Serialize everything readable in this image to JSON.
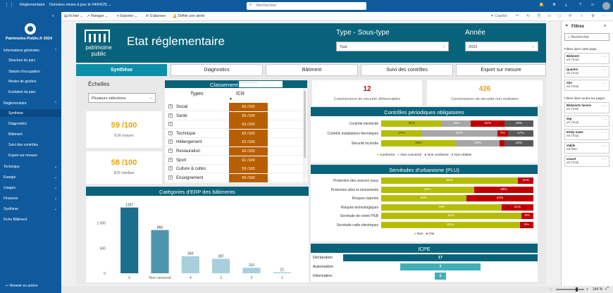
{
  "app": {
    "title": "Réglementaire",
    "updated": "Données mises à jour le 04/04/25",
    "search_placeholder": "Rechercher"
  },
  "sidebar": {
    "brand": "Patrimoine-Public.fr 2024",
    "items": [
      {
        "label": "Informations générales"
      },
      {
        "label": "Structure du parc"
      },
      {
        "label": "Statuts d'occupation"
      },
      {
        "label": "Modes de gestion"
      },
      {
        "label": "Evolution du parc"
      },
      {
        "label": "Réglementaire"
      },
      {
        "label": "Synthèse"
      },
      {
        "label": "Diagnostics"
      },
      {
        "label": "Bâtiment"
      },
      {
        "label": "Suivi des contrôles"
      },
      {
        "label": "Export sur mesure"
      },
      {
        "label": "Technique"
      },
      {
        "label": "Energie"
      },
      {
        "label": "Usages"
      },
      {
        "label": "Finances"
      },
      {
        "label": "Synthèse"
      },
      {
        "label": "Fiche Bâtiment"
      }
    ],
    "back": "Revenir en arrière"
  },
  "toolbar": {
    "file": "Fichier",
    "share": "Partager",
    "export": "Exporter",
    "subscribe": "S'abonner",
    "alert": "Définir une alerte",
    "copilot": "Copilot"
  },
  "report": {
    "logo_text": "patrimoine public",
    "title": "Etat réglementaire",
    "filter_type_label": "Type - Sous-type",
    "filter_type_value": "Tout",
    "filter_year_label": "Année",
    "filter_year_value": "2023",
    "tabs": [
      "Synthèse",
      "Diagnostics",
      "Bâtiment",
      "Suivi des contrôles",
      "Export sur mesure"
    ],
    "echelles_label": "Échelles",
    "echelles_value": "Plusieurs sélections",
    "kpi1_value": "59 /100",
    "kpi1_label": "ICR moyen",
    "kpi2_value": "58 /100",
    "kpi2_label": "ICR médian",
    "class_title": "Classement",
    "class_col_types": "Types",
    "class_col_icr": "ICR",
    "class_rows": [
      {
        "t": "Social",
        "v": "66 /100"
      },
      {
        "t": "Santé",
        "v": "65 /100"
      },
      {
        "t": "",
        "v": "63 /100"
      },
      {
        "t": "Technique",
        "v": "63 /100"
      },
      {
        "t": "Hébergement",
        "v": "62 /100"
      },
      {
        "t": "Restauration",
        "v": "62 /100"
      },
      {
        "t": "Sport",
        "v": "61 /100"
      },
      {
        "t": "Culture & cultes",
        "v": "59 /100"
      },
      {
        "t": "Enseignement",
        "v": "59 /100"
      }
    ],
    "comm_fav_value": "12",
    "comm_fav_label": "Commissions de sécurité défavorables",
    "comm_nr_value": "426",
    "comm_nr_label": "Commissions de sécurité non réalisées",
    "cpo_title": "Contrôles périodiques obligatoires",
    "cpo_rows": [
      {
        "label": "Contrôle électricité",
        "segs": [
          "40%",
          "19%",
          "22%",
          "19%"
        ],
        "w": [
          40,
          19,
          22,
          19
        ]
      },
      {
        "label": "Contrôle installations thermiques",
        "segs": [
          "27%",
          "50%",
          "7%",
          "17%"
        ],
        "w": [
          27,
          50,
          7,
          17
        ]
      },
      {
        "label": "Sécurité incendie",
        "segs": [
          "49%",
          "29%",
          "",
          "19%"
        ],
        "w": [
          49,
          29,
          3,
          19
        ]
      }
    ],
    "cpo_legend": [
      "Conforme",
      "Non concerné",
      "Non conforme",
      "Non réalisé"
    ],
    "plu_title": "Servitudes d'urbanisme (PLU)",
    "plu_rows": [
      {
        "label": "Protection des sources (eau)",
        "a": "90%",
        "b": "10%",
        "wa": 90
      },
      {
        "label": "Protection sites et monuments",
        "a": "61%",
        "b": "39%",
        "wa": 61
      },
      {
        "label": "Risques naturels",
        "a": "56%",
        "b": "44%",
        "wa": 56
      },
      {
        "label": "Risques technologiques",
        "a": "79%",
        "b": "21%",
        "wa": 79
      },
      {
        "label": "Servitude de voirie/ PEB",
        "a": "92%",
        "b": "8%",
        "wa": 92
      },
      {
        "label": "Servitude radio électriques",
        "a": "91%",
        "b": "9%",
        "wa": 91
      }
    ],
    "plu_legend": [
      "Non",
      "Oui"
    ],
    "icpe_title": "ICPE",
    "icpe_rows": [
      {
        "label": "Déclaration",
        "v": "17"
      },
      {
        "label": "Autorisation",
        "v": "7"
      },
      {
        "label": "Information",
        "v": "1"
      }
    ],
    "erp_title": "Catégories d'ERP des bâtiments"
  },
  "filters": {
    "title": "Filtres",
    "search": "Rechercher",
    "page_section": "Filtres dans cette page",
    "all_section": "Filtres dans toutes les pages",
    "page_filters": [
      {
        "n": "Bâtiment",
        "v": "est (Tout)"
      },
      {
        "n": "Quartier",
        "v": "est (Tout)"
      },
      {
        "n": "Site",
        "v": "est (Tout)"
      }
    ],
    "all_filters": [
      {
        "n": "Bâtiments favoris",
        "v": "est (Tout)"
      },
      {
        "n": "dep",
        "v": "est (Tout)"
      },
      {
        "n": "Entity name",
        "v": "est (Tout)"
      },
      {
        "n": "Valide",
        "v": "est false"
      },
      {
        "n": "vacant",
        "v": "est (Tout)"
      }
    ]
  },
  "zoom": "144 %",
  "chart_data": {
    "type": "bar",
    "title": "Catégories d'ERP des bâtiments",
    "categories": [
      "5",
      "Non concerné",
      "4",
      "3",
      "2",
      "1"
    ],
    "values": [
      1307,
      860,
      340,
      287,
      110,
      21
    ],
    "ylim": [
      0,
      1400
    ],
    "yticks": [
      "0",
      "500",
      "1 000"
    ],
    "highlight_category": "5"
  },
  "colors": {
    "brand": "#0f5a9c",
    "teal": "#08637a",
    "accent": "#0e8fa8",
    "conforme": "#b5bd00",
    "nonconcerne": "#a6a6a6",
    "nonconforme": "#c00000",
    "nonrealise": "#595959",
    "orange": "#f0a000",
    "icr_cell": "#b75f00"
  }
}
